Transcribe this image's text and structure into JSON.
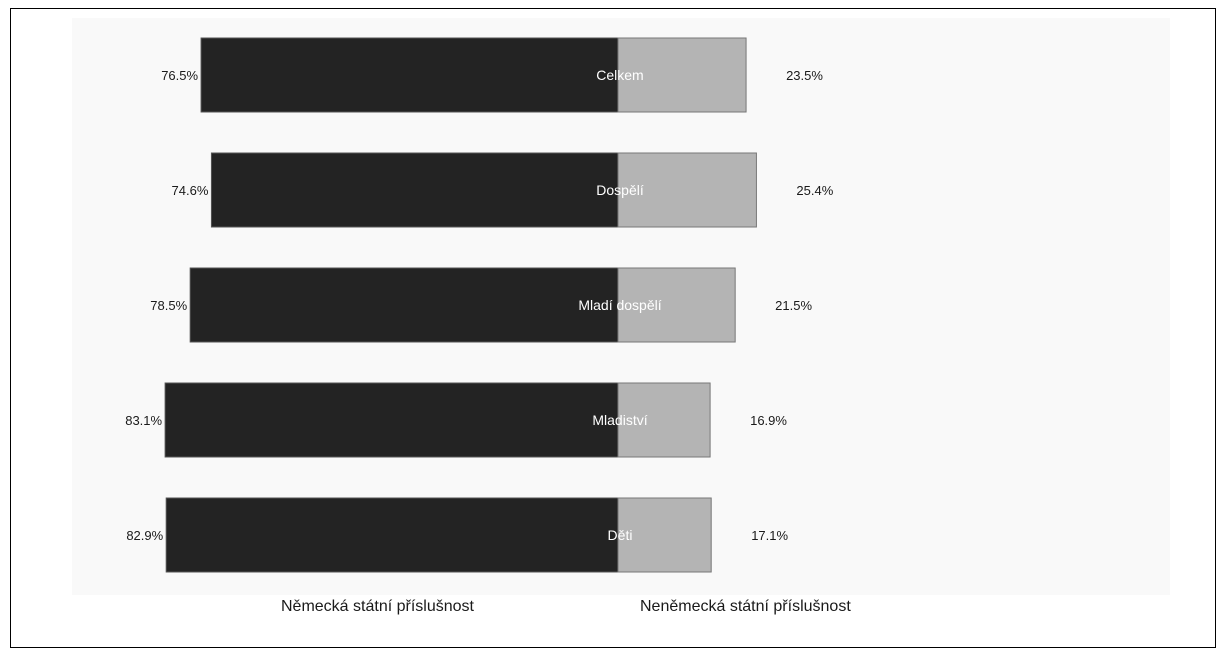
{
  "chart_data": {
    "type": "bar",
    "orientation": "horizontal",
    "stacked": "diverging",
    "title": "",
    "xlabel": "",
    "ylabel": "",
    "categories": [
      "Celkem",
      "Dospělí",
      "Mladí dospělí",
      "Mladiství",
      "Děti"
    ],
    "series": [
      {
        "name": "Německá státní příslušnost",
        "values": [
          76.5,
          74.6,
          78.5,
          83.1,
          82.9
        ],
        "labels": [
          "76.5%",
          "74.6%",
          "78.5%",
          "83.1%",
          "82.9%"
        ],
        "color": "#232323"
      },
      {
        "name": "Neněmecká státní příslušnost",
        "values": [
          23.5,
          25.4,
          21.5,
          16.9,
          17.1
        ],
        "labels": [
          "23.5%",
          "25.4%",
          "21.5%",
          "16.9%",
          "17.1%"
        ],
        "color": "#b4b4b4"
      }
    ],
    "legend_position": "bottom",
    "grid": false
  }
}
